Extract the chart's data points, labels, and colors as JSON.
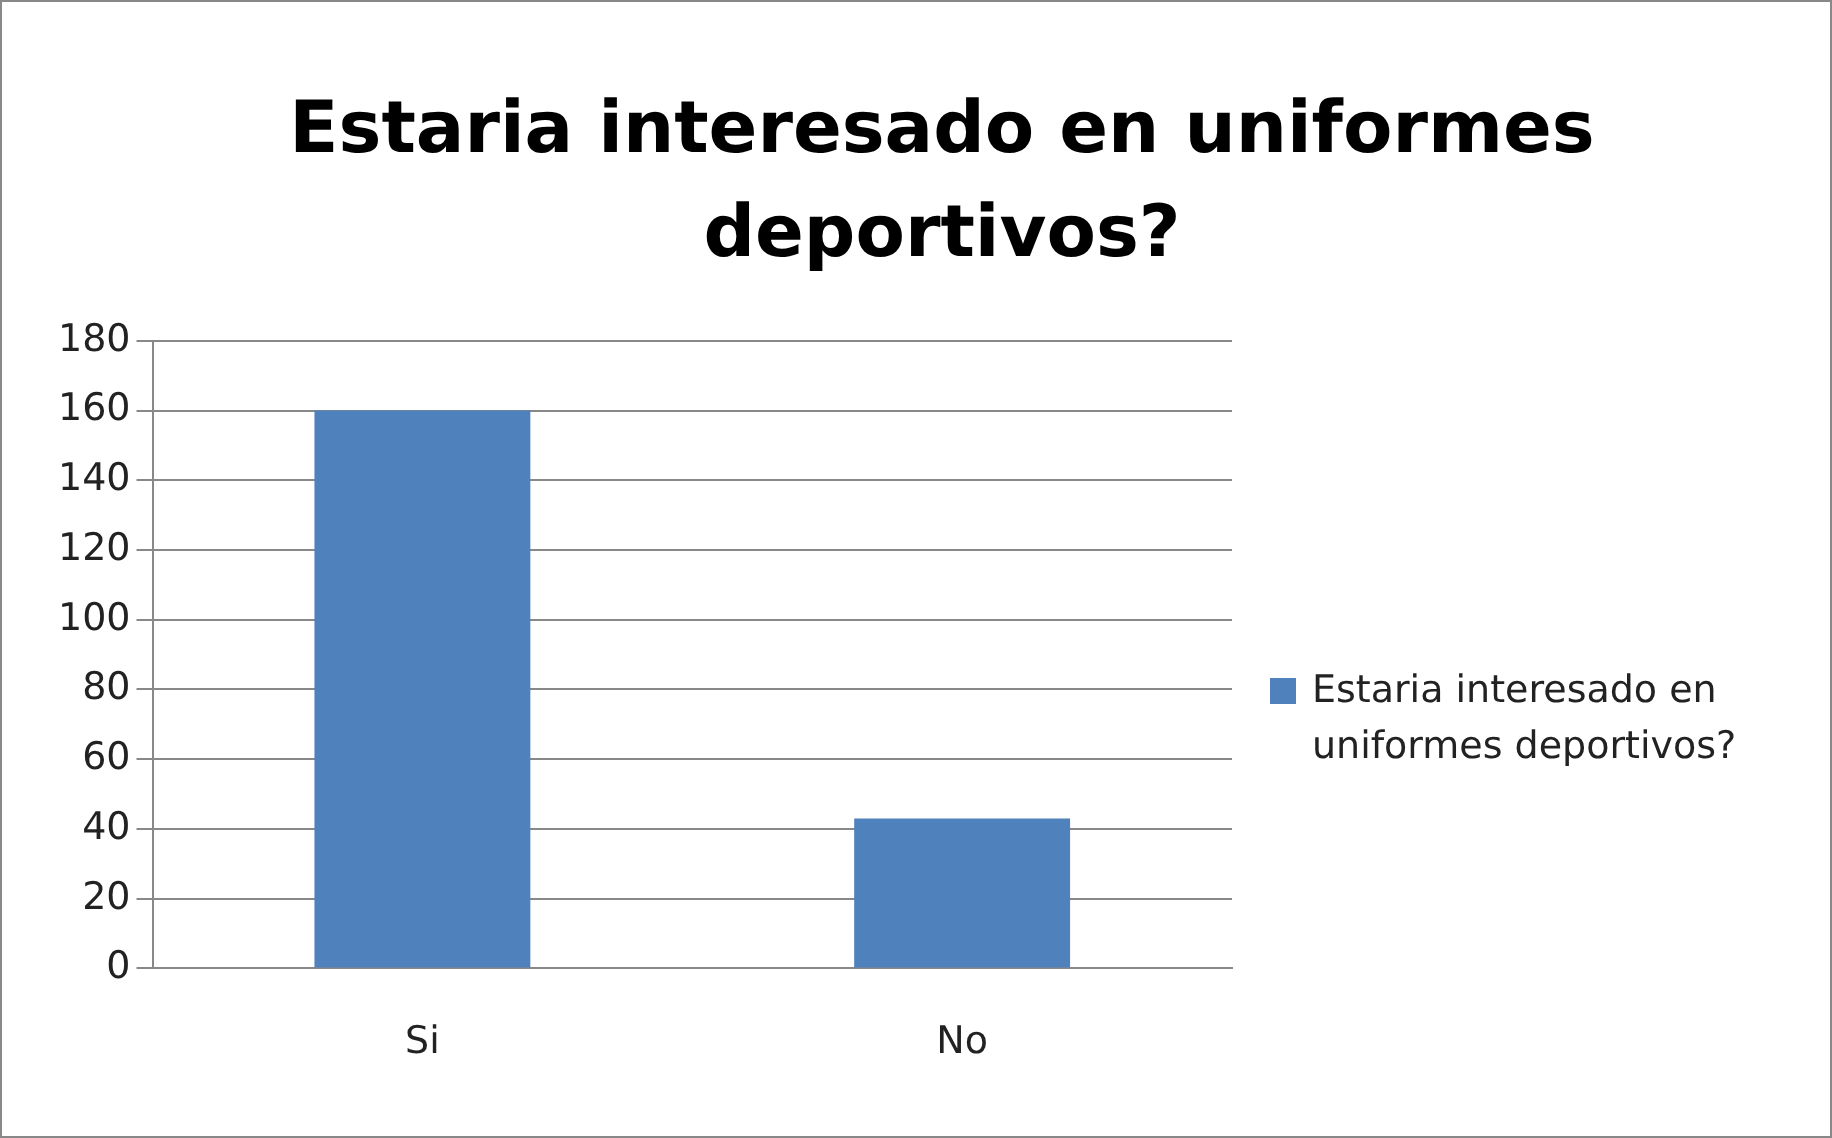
{
  "chart_data": {
    "type": "bar",
    "title": "Estaria interesado en uniformes deportivos?",
    "categories": [
      "Si",
      "No"
    ],
    "series": [
      {
        "name": "Estaria interesado en uniformes deportivos?",
        "color": "#4f81bd",
        "values": [
          160,
          43
        ]
      }
    ],
    "ylim": [
      0,
      180
    ],
    "yticks": [
      0,
      20,
      40,
      60,
      80,
      100,
      120,
      140,
      160,
      180
    ],
    "grid": "y",
    "legend": "right"
  }
}
